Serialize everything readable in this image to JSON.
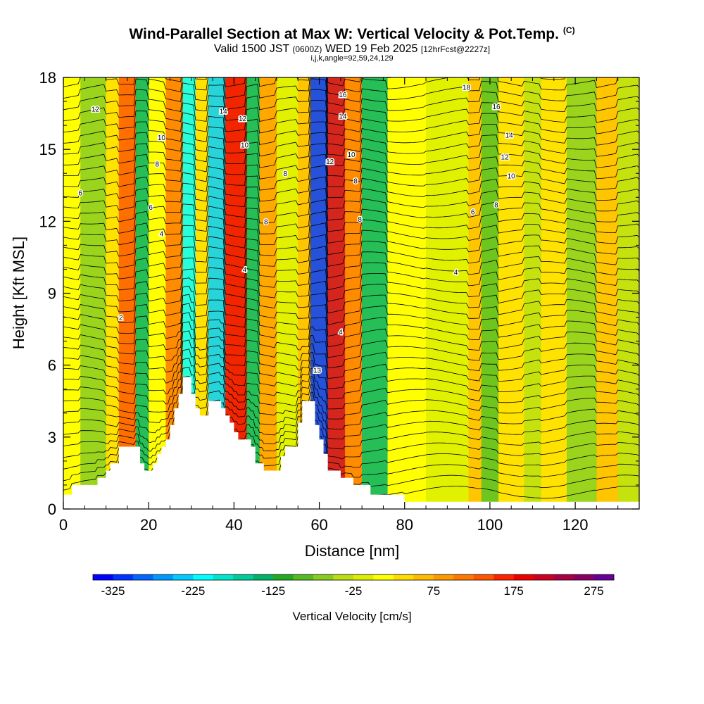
{
  "header": {
    "title": "Wind-Parallel Section at Max W: Vertical Velocity & Pot.Temp.",
    "title_mark": "(C)",
    "valid_prefix": "Valid 1500 JST",
    "valid_zulu": "(0600Z)",
    "valid_date": "WED 19 Feb 2025",
    "valid_fcst": "[12hrFcst@2227z]",
    "indices": "i,j,k,angle=92,59,24,129"
  },
  "chart_data": {
    "type": "heatmap",
    "xlabel": "Distance [nm]",
    "ylabel": "Height [Kft MSL]",
    "xlim": [
      0,
      135
    ],
    "ylim": [
      0,
      18
    ],
    "x_ticks": [
      0,
      20,
      40,
      60,
      80,
      100,
      120
    ],
    "y_ticks": [
      0,
      3,
      6,
      9,
      12,
      15,
      18
    ],
    "colorbar": {
      "label": "Vertical Velocity [cm/s]",
      "min": -350,
      "max": 300,
      "step": 25,
      "tick_values": [
        -325,
        -225,
        -125,
        -25,
        75,
        175,
        275
      ],
      "tick_labels": [
        "-325",
        "-225",
        "-125",
        "-25",
        "75",
        "175",
        "275"
      ],
      "colors": [
        "#0000ff",
        "#0033ff",
        "#0066ff",
        "#0099ff",
        "#00ccff",
        "#00ffff",
        "#00e6cc",
        "#00cc99",
        "#00b366",
        "#22aa22",
        "#55bb22",
        "#88cc22",
        "#bbdd11",
        "#ddee00",
        "#ffff00",
        "#ffdd00",
        "#ffbb00",
        "#ff9900",
        "#ff7700",
        "#ff5500",
        "#ff2200",
        "#ee0000",
        "#cc0022",
        "#aa0044",
        "#880066",
        "#660099"
      ]
    },
    "vertical_velocity_cells": {
      "note_units": "cm/s",
      "cells": [
        {
          "x": [
            0,
            4
          ],
          "w": 20
        },
        {
          "x": [
            4,
            10
          ],
          "w": -75
        },
        {
          "x": [
            10,
            13
          ],
          "w": 40
        },
        {
          "x": [
            13,
            17
          ],
          "w": 130
        },
        {
          "x": [
            17,
            20
          ],
          "w": -140
        },
        {
          "x": [
            20,
            24
          ],
          "w": 5
        },
        {
          "x": [
            24,
            28
          ],
          "w": 110
        },
        {
          "x": [
            28,
            31
          ],
          "w": -210
        },
        {
          "x": [
            31,
            34
          ],
          "w": 30
        },
        {
          "x": [
            34,
            38
          ],
          "w": -230
        },
        {
          "x": [
            38,
            43
          ],
          "w": 180
        },
        {
          "x": [
            43,
            46
          ],
          "w": -150
        },
        {
          "x": [
            46,
            50
          ],
          "w": 90
        },
        {
          "x": [
            50,
            55
          ],
          "w": -20
        },
        {
          "x": [
            55,
            58
          ],
          "w": 60
        },
        {
          "x": [
            58,
            62
          ],
          "w": -320
        },
        {
          "x": [
            62,
            66
          ],
          "w": 220
        },
        {
          "x": [
            66,
            70
          ],
          "w": 100
        },
        {
          "x": [
            70,
            76
          ],
          "w": -130
        },
        {
          "x": [
            76,
            85
          ],
          "w": 10
        },
        {
          "x": [
            85,
            95
          ],
          "w": -10
        },
        {
          "x": [
            95,
            98
          ],
          "w": 60
        },
        {
          "x": [
            98,
            102
          ],
          "w": -100
        },
        {
          "x": [
            102,
            108
          ],
          "w": 40
        },
        {
          "x": [
            108,
            112
          ],
          "w": -50
        },
        {
          "x": [
            112,
            118
          ],
          "w": 30
        },
        {
          "x": [
            118,
            125
          ],
          "w": -60
        },
        {
          "x": [
            125,
            130
          ],
          "w": 70
        },
        {
          "x": [
            130,
            135
          ],
          "w": -40
        }
      ]
    },
    "potential_temperature_contours": {
      "levels": [
        2,
        4,
        6,
        8,
        10,
        12,
        14,
        16,
        18
      ],
      "labels": [
        {
          "text": "2",
          "x": 13.5,
          "y": 8.0
        },
        {
          "text": "4",
          "x": 23,
          "y": 11.5
        },
        {
          "text": "4",
          "x": 42.5,
          "y": 10.0
        },
        {
          "text": "4",
          "x": 65,
          "y": 7.4
        },
        {
          "text": "4",
          "x": 92,
          "y": 9.9
        },
        {
          "text": "6",
          "x": 4,
          "y": 13.2
        },
        {
          "text": "6",
          "x": 20.5,
          "y": 12.6
        },
        {
          "text": "6",
          "x": 96,
          "y": 12.4
        },
        {
          "text": "8",
          "x": 22,
          "y": 14.4
        },
        {
          "text": "8",
          "x": 47.5,
          "y": 12.0
        },
        {
          "text": "8",
          "x": 52,
          "y": 14.0
        },
        {
          "text": "8",
          "x": 68.5,
          "y": 13.7
        },
        {
          "text": "8",
          "x": 69.5,
          "y": 12.1
        },
        {
          "text": "8",
          "x": 101.5,
          "y": 12.7
        },
        {
          "text": "10",
          "x": 23,
          "y": 15.5
        },
        {
          "text": "10",
          "x": 42.5,
          "y": 15.2
        },
        {
          "text": "10",
          "x": 67.5,
          "y": 14.8
        },
        {
          "text": "10",
          "x": 105,
          "y": 13.9
        },
        {
          "text": "12",
          "x": 7.5,
          "y": 16.7
        },
        {
          "text": "12",
          "x": 42,
          "y": 16.3
        },
        {
          "text": "12",
          "x": 62.5,
          "y": 14.5
        },
        {
          "text": "12",
          "x": 103.5,
          "y": 14.7
        },
        {
          "text": "13",
          "x": 59.5,
          "y": 5.8
        },
        {
          "text": "14",
          "x": 37.5,
          "y": 16.6
        },
        {
          "text": "14",
          "x": 65.5,
          "y": 16.4
        },
        {
          "text": "14",
          "x": 104.5,
          "y": 15.6
        },
        {
          "text": "16",
          "x": 65.5,
          "y": 17.3
        },
        {
          "text": "16",
          "x": 101.5,
          "y": 16.8
        },
        {
          "text": "18",
          "x": 94.5,
          "y": 17.6
        }
      ]
    },
    "terrain": [
      [
        0,
        0.6
      ],
      [
        2,
        0.6
      ],
      [
        2,
        1.0
      ],
      [
        8,
        1.0
      ],
      [
        8,
        1.3
      ],
      [
        10,
        1.3
      ],
      [
        10,
        1.6
      ],
      [
        11,
        1.6
      ],
      [
        11,
        1.9
      ],
      [
        13,
        1.9
      ],
      [
        13,
        2.6
      ],
      [
        18,
        2.6
      ],
      [
        18,
        1.9
      ],
      [
        19,
        1.9
      ],
      [
        19,
        1.6
      ],
      [
        21,
        1.6
      ],
      [
        21,
        1.9
      ],
      [
        22,
        1.9
      ],
      [
        22,
        2.3
      ],
      [
        23,
        2.3
      ],
      [
        23,
        2.6
      ],
      [
        24,
        2.6
      ],
      [
        24,
        2.9
      ],
      [
        25,
        2.9
      ],
      [
        25,
        3.5
      ],
      [
        26,
        3.5
      ],
      [
        26,
        4.2
      ],
      [
        27,
        4.2
      ],
      [
        27,
        4.8
      ],
      [
        28,
        4.8
      ],
      [
        28,
        5.5
      ],
      [
        30,
        5.5
      ],
      [
        30,
        4.8
      ],
      [
        31,
        4.8
      ],
      [
        31,
        4.2
      ],
      [
        32,
        4.2
      ],
      [
        32,
        3.9
      ],
      [
        34,
        3.9
      ],
      [
        34,
        4.5
      ],
      [
        37,
        4.5
      ],
      [
        37,
        4.2
      ],
      [
        38,
        4.2
      ],
      [
        38,
        3.9
      ],
      [
        39,
        3.9
      ],
      [
        39,
        3.6
      ],
      [
        40,
        3.6
      ],
      [
        40,
        3.2
      ],
      [
        41,
        3.2
      ],
      [
        41,
        2.9
      ],
      [
        44,
        2.9
      ],
      [
        44,
        2.6
      ],
      [
        45,
        2.6
      ],
      [
        45,
        1.9
      ],
      [
        47,
        1.9
      ],
      [
        47,
        1.6
      ],
      [
        51,
        1.6
      ],
      [
        51,
        2.2
      ],
      [
        52,
        2.2
      ],
      [
        52,
        2.6
      ],
      [
        55,
        2.6
      ],
      [
        55,
        3.6
      ],
      [
        56,
        3.6
      ],
      [
        56,
        4.5
      ],
      [
        59,
        4.5
      ],
      [
        59,
        3.5
      ],
      [
        60,
        3.5
      ],
      [
        60,
        2.9
      ],
      [
        61,
        2.9
      ],
      [
        61,
        2.3
      ],
      [
        62,
        2.3
      ],
      [
        62,
        1.6
      ],
      [
        65,
        1.6
      ],
      [
        65,
        1.3
      ],
      [
        68,
        1.3
      ],
      [
        68,
        1.0
      ],
      [
        72,
        1.0
      ],
      [
        72,
        0.6
      ],
      [
        80,
        0.6
      ],
      [
        80,
        0.3
      ],
      [
        135,
        0.3
      ]
    ]
  }
}
